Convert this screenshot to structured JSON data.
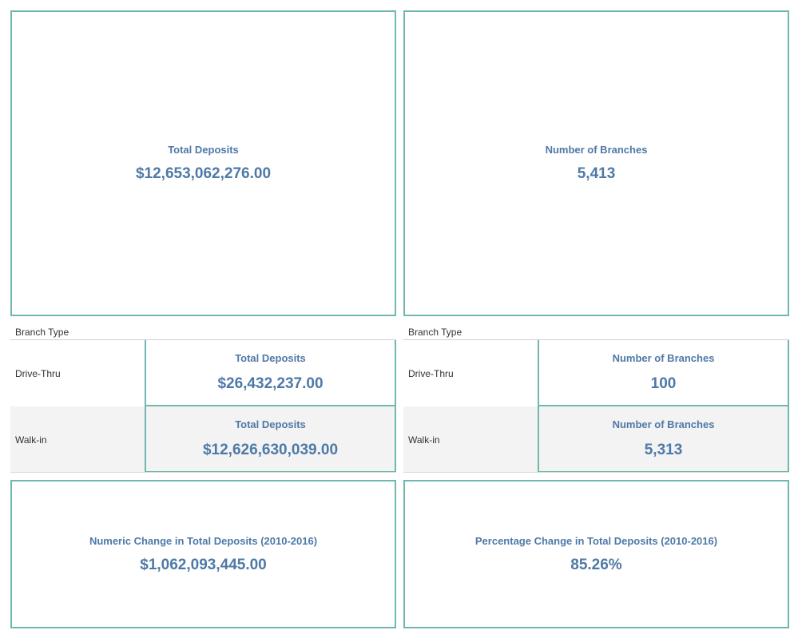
{
  "top_left": {
    "label": "Total Deposits",
    "value": "$12,653,062,276.00"
  },
  "top_right": {
    "label": "Number of Branches",
    "value": "5,413"
  },
  "deposits_breakdown": {
    "header": "Branch Type",
    "rows": [
      {
        "branch_type": "Drive-Thru",
        "label": "Total Deposits",
        "value": "$26,432,237.00"
      },
      {
        "branch_type": "Walk-in",
        "label": "Total Deposits",
        "value": "$12,626,630,039.00"
      }
    ]
  },
  "branches_breakdown": {
    "header": "Branch Type",
    "rows": [
      {
        "branch_type": "Drive-Thru",
        "label": "Number of Branches",
        "value": "100"
      },
      {
        "branch_type": "Walk-in",
        "label": "Number of Branches",
        "value": "5,313"
      }
    ]
  },
  "bottom_left": {
    "label": "Numeric Change in Total Deposits (2010-2016)",
    "value": "$1,062,093,445.00"
  },
  "bottom_right": {
    "label": "Percentage Change in Total Deposits (2010-2016)",
    "value": "85.26%"
  },
  "colors": {
    "accent": "#4e79a7",
    "border": "#6fb7b0",
    "row_shade": "#f3f3f3"
  }
}
